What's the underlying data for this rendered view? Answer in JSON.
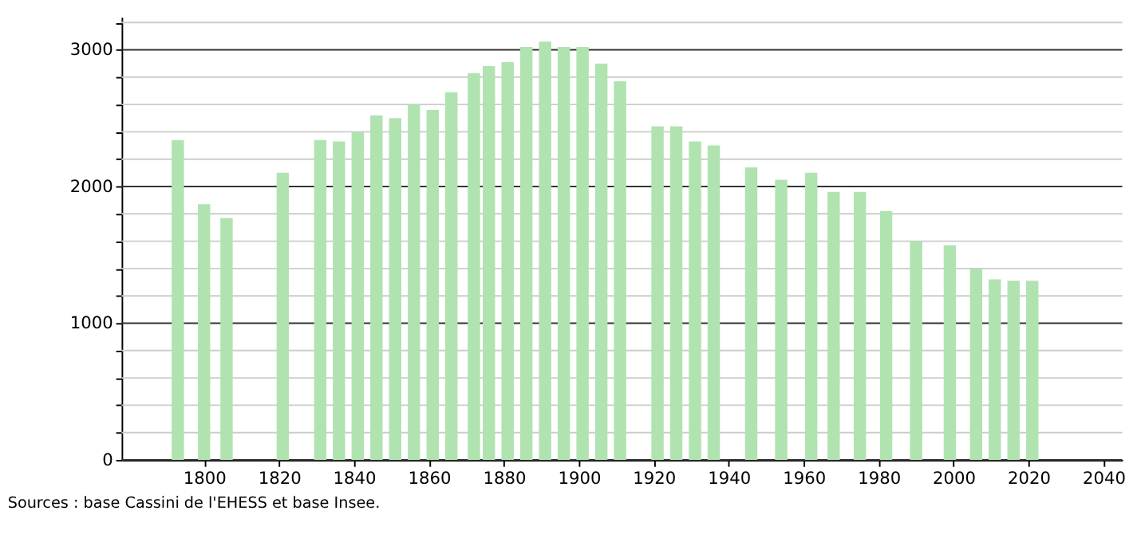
{
  "chart_data": {
    "type": "bar",
    "x": [
      1793,
      1800,
      1806,
      1821,
      1831,
      1836,
      1841,
      1846,
      1851,
      1856,
      1861,
      1866,
      1872,
      1876,
      1881,
      1886,
      1891,
      1896,
      1901,
      1906,
      1911,
      1921,
      1926,
      1931,
      1936,
      1946,
      1954,
      1962,
      1968,
      1975,
      1982,
      1990,
      1999,
      2006,
      2011,
      2016,
      2021
    ],
    "values": [
      2340,
      1870,
      1770,
      2100,
      2340,
      2330,
      2400,
      2520,
      2500,
      2600,
      2560,
      2690,
      2830,
      2880,
      2910,
      3020,
      3060,
      3020,
      3020,
      2900,
      2770,
      2440,
      2440,
      2330,
      2300,
      2140,
      2050,
      2100,
      1960,
      1960,
      1820,
      1600,
      1570,
      1400,
      1320,
      1310,
      1310
    ],
    "color": "#b0e3b0",
    "xlim": [
      1778,
      2045
    ],
    "xticks": [
      1800,
      1820,
      1840,
      1860,
      1880,
      1900,
      1920,
      1940,
      1960,
      1980,
      2000,
      2020,
      2040
    ],
    "ylim": [
      0,
      3240
    ],
    "yticks": [
      0,
      {
        "value": 200,
        "label": null
      },
      {
        "value": 400,
        "label": null
      },
      {
        "value": 600,
        "label": null
      },
      {
        "value": 800,
        "label": null
      },
      1000,
      {
        "value": 1200,
        "label": null
      },
      {
        "value": 1400,
        "label": null
      },
      {
        "value": 1600,
        "label": null
      },
      {
        "value": 1800,
        "label": null
      },
      2000,
      {
        "value": 2200,
        "label": null
      },
      {
        "value": 2400,
        "label": null
      },
      {
        "value": 2600,
        "label": null
      },
      {
        "value": 2800,
        "label": null
      },
      3000,
      {
        "value": 3200,
        "label": null
      }
    ],
    "grid": "y",
    "annotations": [
      "Sources : base Cassini de l'EHESS et base Insee."
    ]
  }
}
